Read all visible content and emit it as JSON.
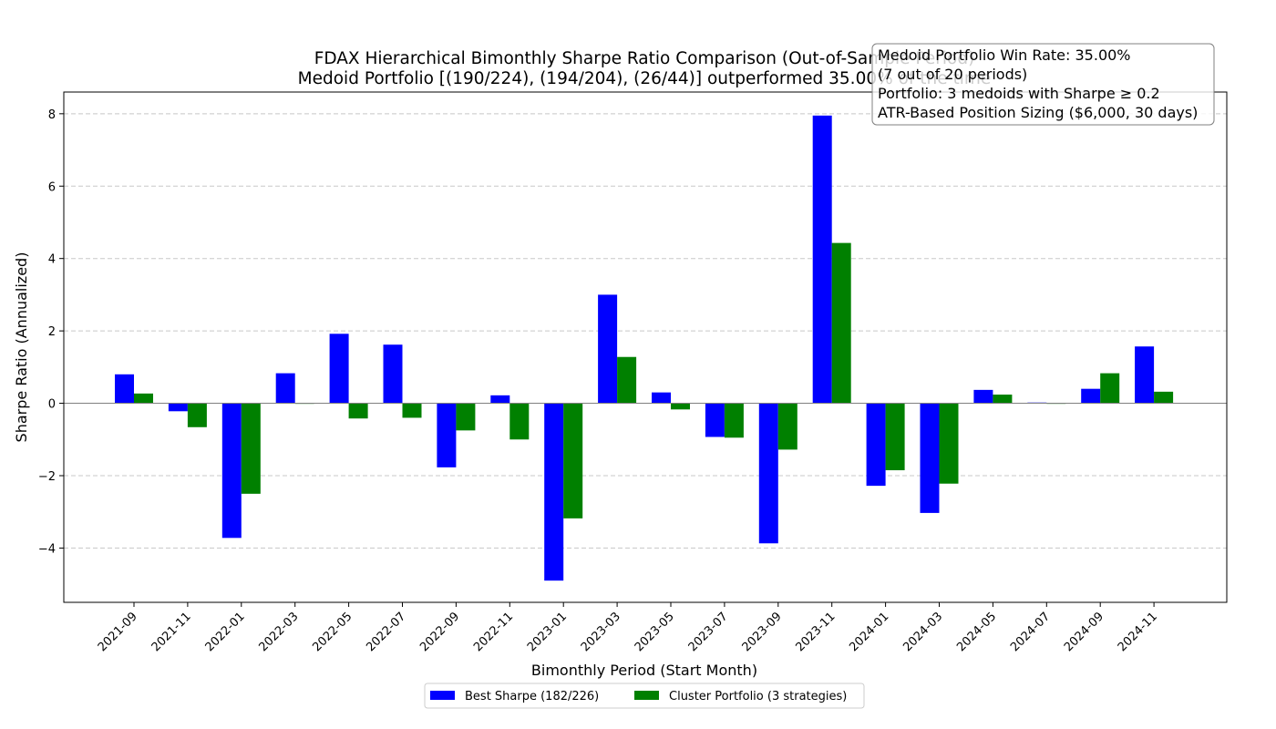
{
  "chart_data": {
    "type": "bar",
    "title": "FDAX Hierarchical Bimonthly Sharpe Ratio Comparison (Out-of-Sample Period)",
    "subtitle": "Medoid Portfolio [(190/224), (194/204), (26/44)] outperformed 35.00% of the time",
    "xlabel": "Bimonthly Period (Start Month)",
    "ylabel": "Sharpe Ratio (Annualized)",
    "ylim": [
      -5.5,
      8.6
    ],
    "yticks": [
      -4,
      -2,
      0,
      2,
      4,
      6,
      8
    ],
    "ytick_labels": [
      "−4",
      "−2",
      "0",
      "2",
      "4",
      "6",
      "8"
    ],
    "grid": "y-dashed",
    "legend_position": "bottom-center",
    "categories": [
      "2021-09",
      "2021-11",
      "2022-01",
      "2022-03",
      "2022-05",
      "2022-07",
      "2022-09",
      "2022-11",
      "2023-01",
      "2023-03",
      "2023-05",
      "2023-07",
      "2023-09",
      "2023-11",
      "2024-01",
      "2024-03",
      "2024-05",
      "2024-07",
      "2024-09",
      "2024-11"
    ],
    "series": [
      {
        "name": "Best Sharpe (182/226)",
        "color": "#0000ff",
        "values": [
          0.8,
          -0.22,
          -3.72,
          0.83,
          1.92,
          1.62,
          -1.77,
          0.22,
          -4.9,
          3.0,
          0.3,
          -0.93,
          -3.87,
          7.95,
          -2.28,
          -3.03,
          0.37,
          0.02,
          0.4,
          1.57
        ]
      },
      {
        "name": "Cluster Portfolio (3 strategies)",
        "color": "#008000",
        "values": [
          0.27,
          -0.66,
          -2.5,
          -0.01,
          -0.42,
          -0.4,
          -0.75,
          -1.0,
          -3.18,
          1.28,
          -0.17,
          -0.95,
          -1.28,
          4.43,
          -1.85,
          -2.22,
          0.24,
          0.0,
          0.83,
          0.32
        ]
      }
    ],
    "annotation": {
      "lines": [
        "Medoid Portfolio Win Rate: 35.00%",
        "(7 out of 20 periods)",
        "Portfolio: 3 medoids with Sharpe ≥ 0.2",
        "ATR-Based Position Sizing ($6,000, 30 days)"
      ]
    }
  }
}
